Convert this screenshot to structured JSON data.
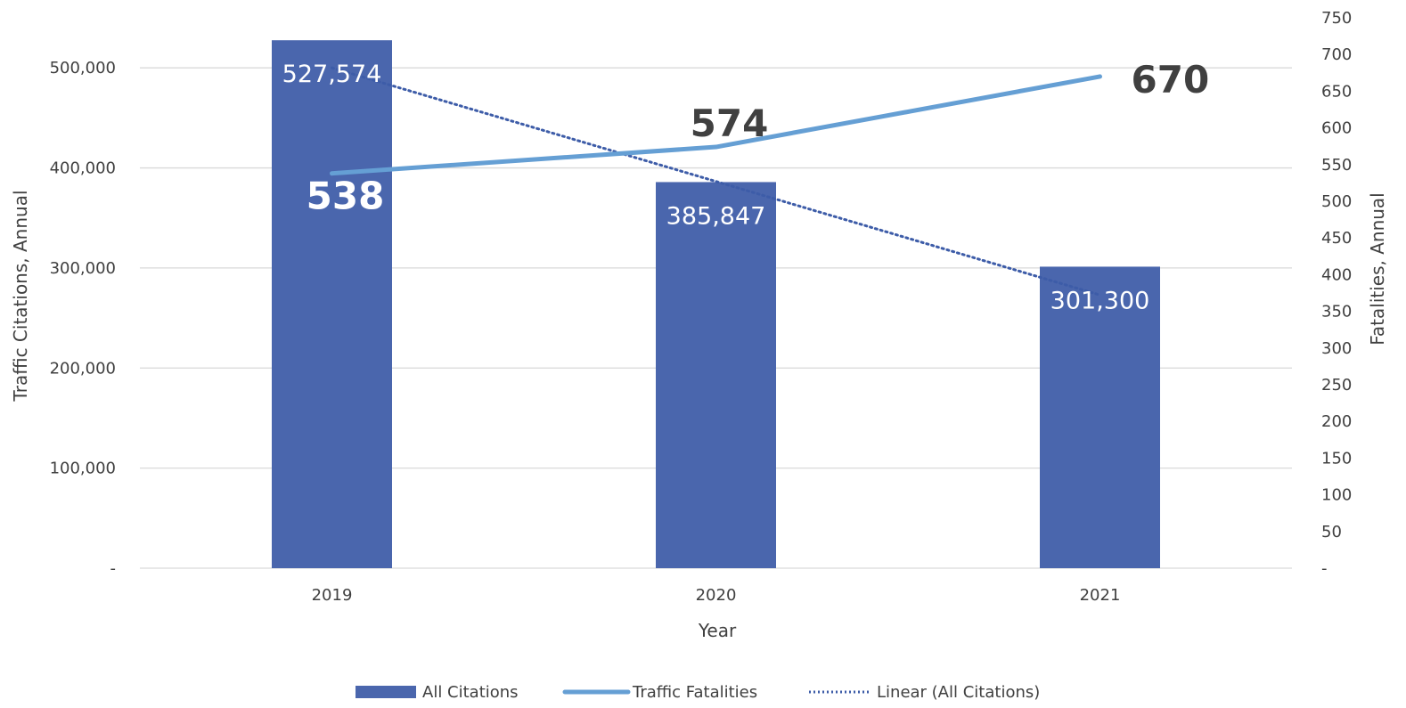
{
  "chart_data": {
    "type": "bar",
    "categories": [
      "2019",
      "2020",
      "2021"
    ],
    "xlabel": "Year",
    "ylabel_left": "Traffic Citations, Annual",
    "ylabel_right": "Fatalities, Annual",
    "ylim_left": [
      0,
      550000
    ],
    "ylim_right": [
      0,
      750
    ],
    "left_ticks": [
      0,
      100000,
      200000,
      300000,
      400000,
      500000
    ],
    "left_tick_labels": [
      "-",
      "100,000",
      "200,000",
      "300,000",
      "400,000",
      "500,000"
    ],
    "right_ticks": [
      0,
      50,
      100,
      150,
      200,
      250,
      300,
      350,
      400,
      450,
      500,
      550,
      600,
      650,
      700,
      750
    ],
    "right_tick_labels": [
      "-",
      "50",
      "100",
      "150",
      "200",
      "250",
      "300",
      "350",
      "400",
      "450",
      "500",
      "550",
      "600",
      "650",
      "700",
      "750"
    ],
    "grid": true,
    "legend_position": "bottom",
    "series": [
      {
        "name": "All Citations",
        "type": "bar",
        "axis": "left",
        "color": "#4a66ad",
        "values": [
          527574,
          385847,
          301300
        ],
        "labels": [
          "527,574",
          "385,847",
          "301,300"
        ]
      },
      {
        "name": "Traffic Fatalities",
        "type": "line",
        "axis": "right",
        "color": "#659fd4",
        "values": [
          538,
          574,
          670
        ],
        "labels": [
          "538",
          "574",
          "670"
        ]
      },
      {
        "name": "Linear (All Citations)",
        "type": "trendline",
        "axis": "left",
        "color": "#3d5ca8",
        "style": "dotted",
        "values": [
          500000,
          386500,
          273000
        ]
      }
    ]
  }
}
